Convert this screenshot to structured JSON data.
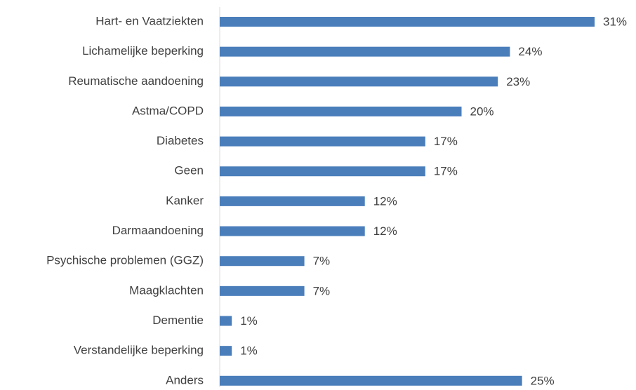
{
  "chart_data": {
    "type": "bar",
    "orientation": "horizontal",
    "color": "#4a7ebb",
    "categories": [
      "Hart- en Vaatziekten",
      "Lichamelijke beperking",
      "Reumatische aandoening",
      "Astma/COPD",
      "Diabetes",
      "Geen",
      "Kanker",
      "Darmaandoening",
      "Psychische problemen (GGZ)",
      "Maagklachten",
      "Dementie",
      "Verstandelijke beperking",
      "Anders"
    ],
    "values": [
      31,
      24,
      23,
      20,
      17,
      17,
      12,
      12,
      7,
      7,
      1,
      1,
      25
    ],
    "value_labels": [
      "31%",
      "24%",
      "23%",
      "20%",
      "17%",
      "17%",
      "12%",
      "12%",
      "7%",
      "7%",
      "1%",
      "1%",
      "25%"
    ]
  }
}
